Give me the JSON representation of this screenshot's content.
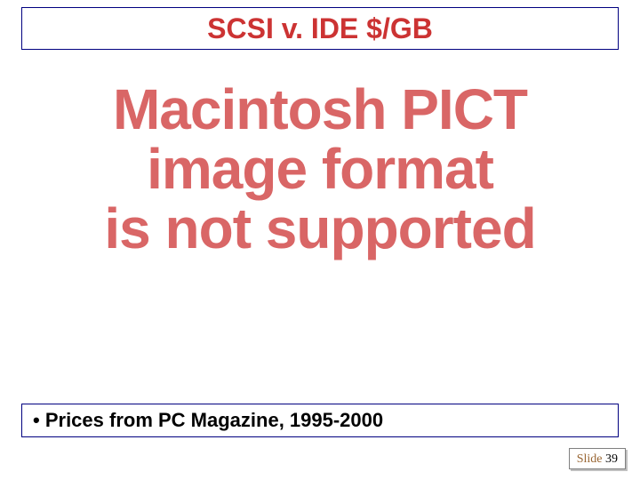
{
  "title": {
    "text": "SCSI v. IDE $/GB",
    "color": "#cc3333",
    "fontsize": 32,
    "border_color": "#000080"
  },
  "error": {
    "line1": "Macintosh PICT",
    "line2": "image format",
    "line3": "is not supported",
    "color": "#d96666",
    "fontsize": 64
  },
  "bullet": {
    "marker": "•",
    "text": "Prices from PC Magazine, 1995-2000",
    "color": "#000000",
    "fontsize": 22,
    "border_color": "#000080"
  },
  "slide_number": {
    "label": "Slide",
    "number": "39",
    "label_color": "#996633",
    "number_color": "#000000"
  },
  "background_color": "#ffffff"
}
